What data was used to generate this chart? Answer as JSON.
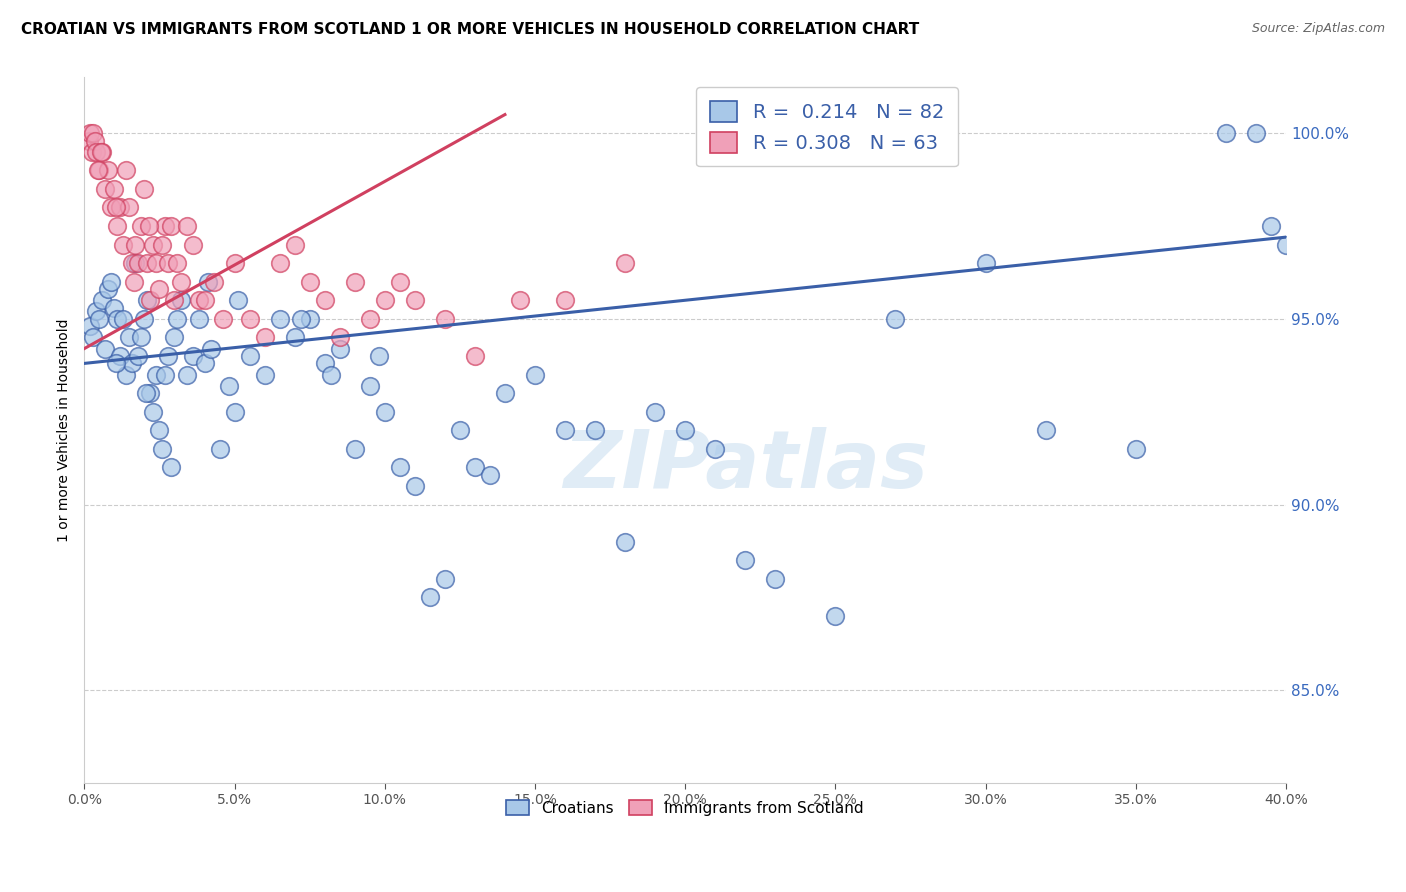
{
  "title": "CROATIAN VS IMMIGRANTS FROM SCOTLAND 1 OR MORE VEHICLES IN HOUSEHOLD CORRELATION CHART",
  "source": "Source: ZipAtlas.com",
  "ylabel_label": "1 or more Vehicles in Household",
  "yaxis_values": [
    85,
    90,
    95,
    100
  ],
  "xaxis_ticks": [
    0,
    5,
    10,
    15,
    20,
    25,
    30,
    35,
    40
  ],
  "legend_blue_r": "0.214",
  "legend_blue_n": "82",
  "legend_pink_r": "0.308",
  "legend_pink_n": "63",
  "legend_blue_label": "Croatians",
  "legend_pink_label": "Immigrants from Scotland",
  "blue_color": "#a8c8e8",
  "blue_line_color": "#3a5fa8",
  "pink_color": "#f0a0b8",
  "pink_line_color": "#d04060",
  "watermark": "ZIPatlas",
  "blue_scatter_x": [
    0.2,
    0.3,
    0.4,
    0.5,
    0.6,
    0.7,
    0.8,
    0.9,
    1.0,
    1.1,
    1.2,
    1.3,
    1.4,
    1.5,
    1.6,
    1.7,
    1.8,
    1.9,
    2.0,
    2.1,
    2.2,
    2.3,
    2.4,
    2.5,
    2.6,
    2.7,
    2.8,
    2.9,
    3.0,
    3.2,
    3.4,
    3.6,
    3.8,
    4.0,
    4.2,
    4.5,
    4.8,
    5.0,
    5.5,
    6.0,
    6.5,
    7.0,
    7.5,
    8.0,
    8.5,
    9.0,
    9.5,
    10.0,
    10.5,
    11.0,
    11.5,
    12.0,
    12.5,
    13.0,
    13.5,
    14.0,
    15.0,
    16.0,
    17.0,
    18.0,
    19.0,
    20.0,
    21.0,
    22.0,
    23.0,
    25.0,
    27.0,
    30.0,
    32.0,
    35.0,
    38.0,
    39.0,
    39.5,
    40.0,
    1.05,
    2.05,
    3.1,
    4.1,
    5.1,
    7.2,
    8.2,
    9.8
  ],
  "blue_scatter_y": [
    94.8,
    94.5,
    95.2,
    95.0,
    95.5,
    94.2,
    95.8,
    96.0,
    95.3,
    95.0,
    94.0,
    95.0,
    93.5,
    94.5,
    93.8,
    96.5,
    94.0,
    94.5,
    95.0,
    95.5,
    93.0,
    92.5,
    93.5,
    92.0,
    91.5,
    93.5,
    94.0,
    91.0,
    94.5,
    95.5,
    93.5,
    94.0,
    95.0,
    93.8,
    94.2,
    91.5,
    93.2,
    92.5,
    94.0,
    93.5,
    95.0,
    94.5,
    95.0,
    93.8,
    94.2,
    91.5,
    93.2,
    92.5,
    91.0,
    90.5,
    87.5,
    88.0,
    92.0,
    91.0,
    90.8,
    93.0,
    93.5,
    92.0,
    92.0,
    89.0,
    92.5,
    92.0,
    91.5,
    88.5,
    88.0,
    87.0,
    95.0,
    96.5,
    92.0,
    91.5,
    100.0,
    100.0,
    97.5,
    97.0,
    93.8,
    93.0,
    95.0,
    96.0,
    95.5,
    95.0,
    93.5,
    94.0
  ],
  "pink_scatter_x": [
    0.15,
    0.2,
    0.25,
    0.3,
    0.35,
    0.4,
    0.5,
    0.6,
    0.7,
    0.8,
    0.9,
    1.0,
    1.1,
    1.2,
    1.3,
    1.4,
    1.5,
    1.6,
    1.7,
    1.8,
    1.9,
    2.0,
    2.1,
    2.2,
    2.3,
    2.4,
    2.5,
    2.6,
    2.7,
    2.8,
    2.9,
    3.0,
    3.1,
    3.2,
    3.4,
    3.6,
    3.8,
    4.0,
    4.3,
    4.6,
    5.0,
    5.5,
    6.0,
    6.5,
    7.0,
    7.5,
    8.0,
    8.5,
    9.0,
    9.5,
    10.0,
    10.5,
    11.0,
    12.0,
    13.0,
    14.5,
    16.0,
    18.0,
    0.45,
    0.55,
    1.05,
    1.65,
    2.15
  ],
  "pink_scatter_y": [
    99.8,
    100.0,
    99.5,
    100.0,
    99.8,
    99.5,
    99.0,
    99.5,
    98.5,
    99.0,
    98.0,
    98.5,
    97.5,
    98.0,
    97.0,
    99.0,
    98.0,
    96.5,
    97.0,
    96.5,
    97.5,
    98.5,
    96.5,
    95.5,
    97.0,
    96.5,
    95.8,
    97.0,
    97.5,
    96.5,
    97.5,
    95.5,
    96.5,
    96.0,
    97.5,
    97.0,
    95.5,
    95.5,
    96.0,
    95.0,
    96.5,
    95.0,
    94.5,
    96.5,
    97.0,
    96.0,
    95.5,
    94.5,
    96.0,
    95.0,
    95.5,
    96.0,
    95.5,
    95.0,
    94.0,
    95.5,
    95.5,
    96.5,
    99.0,
    99.5,
    98.0,
    96.0,
    97.5
  ],
  "xlim": [
    0,
    40
  ],
  "ylim": [
    82.5,
    101.5
  ],
  "blue_line_x0": 0,
  "blue_line_x1": 40,
  "blue_line_y0": 93.8,
  "blue_line_y1": 97.2,
  "pink_line_x0": 0,
  "pink_line_x1": 14,
  "pink_line_y0": 94.2,
  "pink_line_y1": 100.5
}
